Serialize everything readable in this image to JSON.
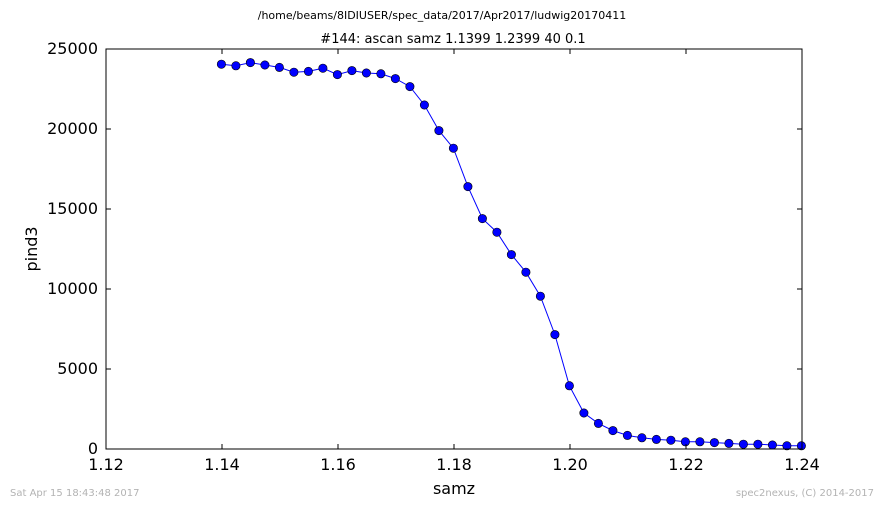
{
  "header": {
    "file_path": "/home/beams/8IDIUSER/spec_data/2017/Apr2017/ludwig20170411"
  },
  "footer": {
    "timestamp": "Sat Apr 15 18:43:48 2017",
    "credit": "spec2nexus, (C) 2014-2017"
  },
  "chart_data": {
    "type": "line",
    "title": "#144: ascan  samz 1.1399 1.2399  40 0.1",
    "xlabel": "samz",
    "ylabel": "pind3",
    "xlim": [
      1.12,
      1.24
    ],
    "ylim": [
      0,
      25000
    ],
    "xticks": [
      "1.12",
      "1.14",
      "1.16",
      "1.18",
      "1.20",
      "1.22",
      "1.24"
    ],
    "yticks": [
      "0",
      "5000",
      "10000",
      "15000",
      "20000",
      "25000"
    ],
    "grid": false,
    "line_color": "#0000ff",
    "x": [
      1.1399,
      1.1424,
      1.1449,
      1.1474,
      1.1499,
      1.1524,
      1.1549,
      1.1574,
      1.1599,
      1.1624,
      1.1649,
      1.1674,
      1.1699,
      1.1724,
      1.1749,
      1.1774,
      1.1799,
      1.1824,
      1.1849,
      1.1874,
      1.1899,
      1.1924,
      1.1949,
      1.1974,
      1.1999,
      1.2024,
      1.2049,
      1.2074,
      1.2099,
      1.2124,
      1.2149,
      1.2174,
      1.2199,
      1.2224,
      1.2249,
      1.2274,
      1.2299,
      1.2324,
      1.2349,
      1.2374,
      1.2399
    ],
    "y": [
      24050,
      23950,
      24150,
      24000,
      23850,
      23550,
      23600,
      23800,
      23400,
      23650,
      23500,
      23450,
      23150,
      22650,
      21500,
      19900,
      18800,
      16400,
      14400,
      13550,
      12150,
      11050,
      9550,
      7150,
      3950,
      2250,
      1600,
      1150,
      850,
      700,
      600,
      550,
      450,
      450,
      400,
      350,
      300,
      300,
      250,
      200,
      200
    ]
  }
}
